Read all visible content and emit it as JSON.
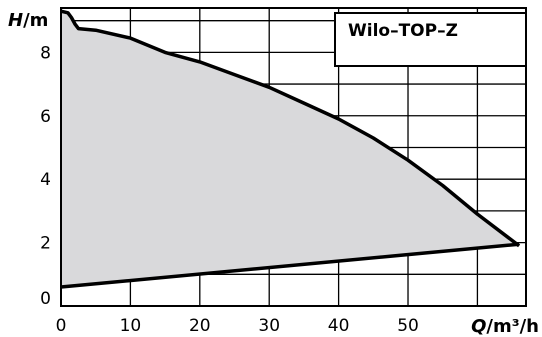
{
  "chart_data": {
    "type": "area",
    "title": "Wilo–TOP–Z",
    "xlabel": {
      "var": "Q",
      "unit": "/m³/h"
    },
    "ylabel": {
      "var": "H",
      "unit": "/m"
    },
    "xlim": [
      0,
      67
    ],
    "ylim": [
      0,
      9.4
    ],
    "x_ticks": [
      "0",
      "10",
      "20",
      "30",
      "40",
      "50"
    ],
    "y_ticks": [
      "0",
      "2",
      "4",
      "6",
      "8"
    ],
    "grid": true,
    "series": [
      {
        "role": "max-curve",
        "x": [
          0,
          1,
          1.5,
          2,
          2.5,
          5,
          10,
          15,
          20,
          25,
          30,
          35,
          40,
          45,
          50,
          55,
          60,
          66
        ],
        "values": [
          9.3,
          9.25,
          9.1,
          8.9,
          8.75,
          8.7,
          8.45,
          8.0,
          7.7,
          7.3,
          6.9,
          6.4,
          5.9,
          5.3,
          4.6,
          3.8,
          2.9,
          1.9
        ]
      },
      {
        "role": "min-curve",
        "x": [
          0,
          66
        ],
        "values": [
          0.6,
          1.95
        ]
      }
    ]
  }
}
